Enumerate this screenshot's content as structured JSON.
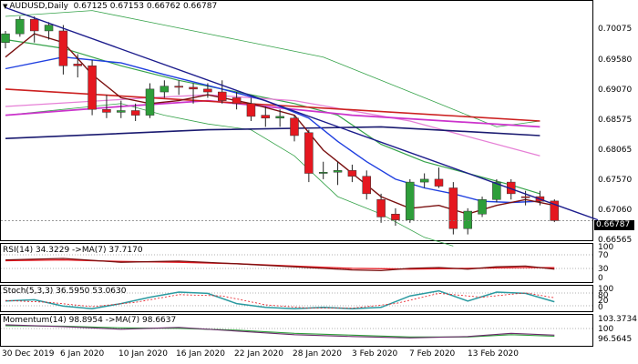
{
  "header": {
    "symbol": "AUDUSD,Daily",
    "open": "0.67125",
    "high": "0.67153",
    "low": "0.66762",
    "close": "0.66787"
  },
  "colors": {
    "bull": "#2e9e3a",
    "bear": "#e5171f",
    "trendline": "#1c1c8c",
    "ma_red": "#cc2020",
    "ma_navy": "#1a1a70",
    "ma_magenta": "#cc33cc",
    "ma_pink": "#e680d6",
    "ma_blue": "#1f3fe0",
    "ma_darkred": "#7a1010",
    "bollinger": "#36a34a"
  },
  "price_axis": {
    "labels": [
      "0.70075",
      "0.69580",
      "0.69070",
      "0.68575",
      "0.68065",
      "0.67570",
      "0.67060",
      "0.66565"
    ],
    "current_price": "0.66787"
  },
  "x_axis": {
    "labels": [
      "30 Dec 2019",
      "6 Jan 2020",
      "10 Jan 2020",
      "16 Jan 2020",
      "22 Jan 2020",
      "28 Jan 2020",
      "3 Feb 2020",
      "7 Feb 2020",
      "13 Feb 2020"
    ]
  },
  "rsi": {
    "label": "RSI(14) 34.3229  ->MA(7) 37.7170",
    "levels": [
      "100",
      "70",
      "30",
      "0"
    ]
  },
  "stoch": {
    "label": "Stoch(5,3,3) 36.5950 53.0630",
    "levels": [
      "100",
      "80",
      "20",
      "0"
    ]
  },
  "momentum": {
    "label": "Momentum(14) 98.8954  ->MA(7) 98.6637",
    "levels": [
      "103.3734",
      "100",
      "96.5645"
    ]
  },
  "chart_data": {
    "type": "candlestick",
    "candles": [
      {
        "o": 0.6985,
        "h": 0.7005,
        "l": 0.6975,
        "c": 0.7
      },
      {
        "o": 0.7,
        "h": 0.703,
        "l": 0.6995,
        "c": 0.7025
      },
      {
        "o": 0.7025,
        "h": 0.703,
        "l": 0.6985,
        "c": 0.7005
      },
      {
        "o": 0.7005,
        "h": 0.702,
        "l": 0.699,
        "c": 0.7015
      },
      {
        "o": 0.7005,
        "h": 0.7015,
        "l": 0.693,
        "c": 0.6945
      },
      {
        "o": 0.6948,
        "h": 0.6965,
        "l": 0.6925,
        "c": 0.6945
      },
      {
        "o": 0.6945,
        "h": 0.6955,
        "l": 0.686,
        "c": 0.687
      },
      {
        "o": 0.687,
        "h": 0.6895,
        "l": 0.6855,
        "c": 0.6865
      },
      {
        "o": 0.6865,
        "h": 0.6885,
        "l": 0.6855,
        "c": 0.6868
      },
      {
        "o": 0.6868,
        "h": 0.688,
        "l": 0.685,
        "c": 0.686
      },
      {
        "o": 0.686,
        "h": 0.6915,
        "l": 0.6855,
        "c": 0.6905
      },
      {
        "o": 0.69,
        "h": 0.692,
        "l": 0.689,
        "c": 0.691
      },
      {
        "o": 0.691,
        "h": 0.692,
        "l": 0.6895,
        "c": 0.6908
      },
      {
        "o": 0.6908,
        "h": 0.6915,
        "l": 0.688,
        "c": 0.6905
      },
      {
        "o": 0.6905,
        "h": 0.6915,
        "l": 0.689,
        "c": 0.69
      },
      {
        "o": 0.69,
        "h": 0.692,
        "l": 0.688,
        "c": 0.6885
      },
      {
        "o": 0.689,
        "h": 0.69,
        "l": 0.687,
        "c": 0.688
      },
      {
        "o": 0.688,
        "h": 0.689,
        "l": 0.685,
        "c": 0.6858
      },
      {
        "o": 0.686,
        "h": 0.6875,
        "l": 0.684,
        "c": 0.6855
      },
      {
        "o": 0.6855,
        "h": 0.687,
        "l": 0.684,
        "c": 0.6858
      },
      {
        "o": 0.6855,
        "h": 0.686,
        "l": 0.6815,
        "c": 0.6825
      },
      {
        "o": 0.683,
        "h": 0.6835,
        "l": 0.6745,
        "c": 0.676
      },
      {
        "o": 0.676,
        "h": 0.678,
        "l": 0.675,
        "c": 0.6762
      },
      {
        "o": 0.6762,
        "h": 0.678,
        "l": 0.674,
        "c": 0.6765
      },
      {
        "o": 0.6765,
        "h": 0.6775,
        "l": 0.6745,
        "c": 0.6755
      },
      {
        "o": 0.6755,
        "h": 0.6765,
        "l": 0.6715,
        "c": 0.6725
      },
      {
        "o": 0.6715,
        "h": 0.6725,
        "l": 0.6675,
        "c": 0.6685
      },
      {
        "o": 0.669,
        "h": 0.67,
        "l": 0.667,
        "c": 0.668
      },
      {
        "o": 0.668,
        "h": 0.675,
        "l": 0.6675,
        "c": 0.6745
      },
      {
        "o": 0.6745,
        "h": 0.676,
        "l": 0.6735,
        "c": 0.675
      },
      {
        "o": 0.675,
        "h": 0.677,
        "l": 0.6735,
        "c": 0.6738
      },
      {
        "o": 0.6735,
        "h": 0.6745,
        "l": 0.6655,
        "c": 0.6665
      },
      {
        "o": 0.6665,
        "h": 0.67,
        "l": 0.6655,
        "c": 0.6695
      },
      {
        "o": 0.669,
        "h": 0.672,
        "l": 0.6685,
        "c": 0.6715
      },
      {
        "o": 0.6715,
        "h": 0.675,
        "l": 0.671,
        "c": 0.6745
      },
      {
        "o": 0.6745,
        "h": 0.675,
        "l": 0.6715,
        "c": 0.6725
      },
      {
        "o": 0.672,
        "h": 0.673,
        "l": 0.6705,
        "c": 0.6718
      },
      {
        "o": 0.672,
        "h": 0.673,
        "l": 0.6705,
        "c": 0.6712
      },
      {
        "o": 0.67125,
        "h": 0.67153,
        "l": 0.66762,
        "c": 0.66787
      }
    ],
    "trendline": [
      [
        0,
        0.7045
      ],
      [
        41,
        0.668
      ]
    ],
    "ma_red": [
      [
        0,
        0.6905
      ],
      [
        37,
        0.685
      ]
    ],
    "ma_navy": [
      [
        0,
        0.682
      ],
      [
        14,
        0.6835
      ],
      [
        26,
        0.684
      ],
      [
        37,
        0.6825
      ]
    ],
    "ma_magenta": [
      [
        0,
        0.686
      ],
      [
        8,
        0.6875
      ],
      [
        14,
        0.6885
      ],
      [
        24,
        0.686
      ],
      [
        37,
        0.684
      ]
    ],
    "ma_pink": [
      [
        0,
        0.6875
      ],
      [
        10,
        0.689
      ],
      [
        14,
        0.6895
      ],
      [
        20,
        0.6885
      ],
      [
        28,
        0.685
      ],
      [
        37,
        0.679
      ]
    ],
    "ma_blue": [
      [
        0,
        0.694
      ],
      [
        4,
        0.696
      ],
      [
        8,
        0.695
      ],
      [
        11,
        0.693
      ],
      [
        15,
        0.6905
      ],
      [
        18,
        0.6885
      ],
      [
        21,
        0.6855
      ],
      [
        23,
        0.6815
      ],
      [
        25,
        0.678
      ],
      [
        27,
        0.675
      ],
      [
        29,
        0.6735
      ],
      [
        31,
        0.6725
      ],
      [
        33,
        0.6712
      ],
      [
        35,
        0.671
      ],
      [
        37,
        0.6712
      ]
    ],
    "ma_darkred": [
      [
        0,
        0.696
      ],
      [
        2,
        0.7
      ],
      [
        4,
        0.6985
      ],
      [
        6,
        0.693
      ],
      [
        8,
        0.689
      ],
      [
        10,
        0.688
      ],
      [
        12,
        0.6885
      ],
      [
        14,
        0.6895
      ],
      [
        17,
        0.688
      ],
      [
        20,
        0.686
      ],
      [
        22,
        0.68
      ],
      [
        24,
        0.676
      ],
      [
        26,
        0.672
      ],
      [
        28,
        0.67
      ],
      [
        30,
        0.6705
      ],
      [
        32,
        0.669
      ],
      [
        34,
        0.6705
      ],
      [
        36,
        0.6715
      ],
      [
        38,
        0.6705
      ]
    ],
    "bb_upper": [
      [
        0,
        0.703
      ],
      [
        6,
        0.704
      ],
      [
        10,
        0.702
      ],
      [
        14,
        0.7
      ],
      [
        18,
        0.698
      ],
      [
        22,
        0.696
      ],
      [
        26,
        0.692
      ],
      [
        30,
        0.688
      ],
      [
        34,
        0.684
      ],
      [
        37,
        0.685
      ]
    ],
    "bb_mid": [
      [
        0,
        0.699
      ],
      [
        4,
        0.6975
      ],
      [
        8,
        0.6945
      ],
      [
        12,
        0.692
      ],
      [
        16,
        0.69
      ],
      [
        20,
        0.688
      ],
      [
        23,
        0.686
      ],
      [
        26,
        0.681
      ],
      [
        29,
        0.678
      ],
      [
        32,
        0.676
      ],
      [
        35,
        0.674
      ],
      [
        37,
        0.6725
      ]
    ],
    "bb_lower": [
      [
        0,
        0.686
      ],
      [
        4,
        0.687
      ],
      [
        8,
        0.688
      ],
      [
        11,
        0.686
      ],
      [
        14,
        0.6845
      ],
      [
        17,
        0.6835
      ],
      [
        20,
        0.679
      ],
      [
        23,
        0.672
      ],
      [
        26,
        0.669
      ],
      [
        29,
        0.665
      ],
      [
        31,
        0.6635
      ]
    ],
    "rsi_line": [
      [
        0,
        58
      ],
      [
        4,
        62
      ],
      [
        8,
        52
      ],
      [
        12,
        55
      ],
      [
        16,
        48
      ],
      [
        20,
        40
      ],
      [
        24,
        32
      ],
      [
        26,
        30
      ],
      [
        28,
        36
      ],
      [
        30,
        38
      ],
      [
        32,
        34
      ],
      [
        34,
        40
      ],
      [
        36,
        42
      ],
      [
        38,
        34
      ]
    ],
    "rsi_ma": [
      [
        0,
        56
      ],
      [
        4,
        58
      ],
      [
        8,
        54
      ],
      [
        12,
        52
      ],
      [
        16,
        48
      ],
      [
        20,
        42
      ],
      [
        24,
        36
      ],
      [
        28,
        34
      ],
      [
        32,
        36
      ],
      [
        36,
        38
      ],
      [
        38,
        37.7
      ]
    ],
    "stoch_main": [
      [
        0,
        40
      ],
      [
        2,
        45
      ],
      [
        4,
        20
      ],
      [
        6,
        10
      ],
      [
        8,
        30
      ],
      [
        10,
        55
      ],
      [
        12,
        75
      ],
      [
        14,
        70
      ],
      [
        16,
        30
      ],
      [
        18,
        15
      ],
      [
        20,
        10
      ],
      [
        22,
        15
      ],
      [
        24,
        10
      ],
      [
        26,
        15
      ],
      [
        28,
        60
      ],
      [
        30,
        80
      ],
      [
        32,
        40
      ],
      [
        34,
        75
      ],
      [
        36,
        70
      ],
      [
        38,
        37
      ]
    ],
    "stoch_signal": [
      [
        0,
        42
      ],
      [
        3,
        35
      ],
      [
        6,
        18
      ],
      [
        9,
        35
      ],
      [
        12,
        65
      ],
      [
        15,
        60
      ],
      [
        18,
        25
      ],
      [
        21,
        12
      ],
      [
        24,
        12
      ],
      [
        27,
        30
      ],
      [
        30,
        70
      ],
      [
        33,
        55
      ],
      [
        36,
        72
      ],
      [
        38,
        53
      ]
    ],
    "mom_line": [
      [
        0,
        101.2
      ],
      [
        4,
        100.8
      ],
      [
        8,
        100.2
      ],
      [
        12,
        100.6
      ],
      [
        16,
        99.8
      ],
      [
        20,
        99.0
      ],
      [
        24,
        98.6
      ],
      [
        28,
        98.3
      ],
      [
        32,
        98.6
      ],
      [
        35,
        99.3
      ],
      [
        38,
        98.9
      ]
    ],
    "mom_ma": [
      [
        0,
        101.0
      ],
      [
        4,
        100.9
      ],
      [
        8,
        100.5
      ],
      [
        12,
        100.4
      ],
      [
        16,
        100.0
      ],
      [
        20,
        99.3
      ],
      [
        24,
        98.9
      ],
      [
        28,
        98.5
      ],
      [
        32,
        98.5
      ],
      [
        35,
        99.0
      ],
      [
        38,
        98.66
      ]
    ],
    "price_min": 0.6645,
    "price_max": 0.7055
  }
}
